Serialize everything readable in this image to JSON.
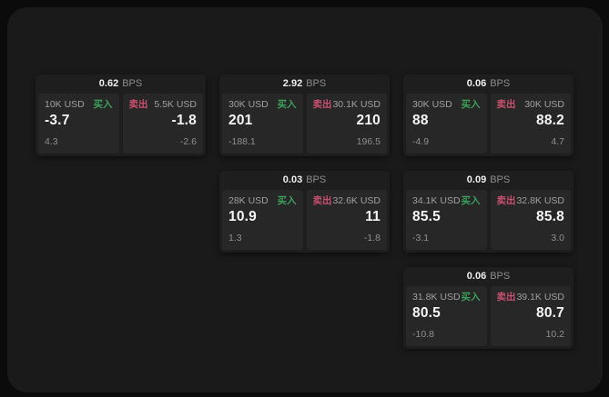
{
  "labels": {
    "bps_unit": "BPS",
    "buy": "买入",
    "sell": "卖出"
  },
  "colors": {
    "outer_background": "#0b0b0b",
    "panel_background": "#1a1a1a",
    "card_background": "#1e1e1e",
    "tile_background": "#272727",
    "buy_accent": "#3ca05a",
    "sell_accent": "#c8506e",
    "value_text": "#f5f5f5",
    "label_text": "#a0a0a0"
  },
  "cards": [
    {
      "col": 0,
      "row": 0,
      "bps": "0.62",
      "buy": {
        "notional": "10K USD",
        "value": "-3.7",
        "delta": "4.3"
      },
      "sell": {
        "notional": "5.5K USD",
        "value": "-1.8",
        "delta": "-2.6"
      }
    },
    {
      "col": 1,
      "row": 0,
      "bps": "2.92",
      "buy": {
        "notional": "30K USD",
        "value": "201",
        "delta": "-188.1"
      },
      "sell": {
        "notional": "30.1K USD",
        "value": "210",
        "delta": "196.5"
      }
    },
    {
      "col": 2,
      "row": 0,
      "bps": "0.06",
      "buy": {
        "notional": "30K USD",
        "value": "88",
        "delta": "-4.9"
      },
      "sell": {
        "notional": "30K USD",
        "value": "88.2",
        "delta": "4.7"
      }
    },
    {
      "col": 1,
      "row": 1,
      "bps": "0.03",
      "buy": {
        "notional": "28K USD",
        "value": "10.9",
        "delta": "1.3"
      },
      "sell": {
        "notional": "32.6K USD",
        "value": "11",
        "delta": "-1.8"
      }
    },
    {
      "col": 2,
      "row": 1,
      "bps": "0.09",
      "buy": {
        "notional": "34.1K USD",
        "value": "85.5",
        "delta": "-3.1"
      },
      "sell": {
        "notional": "32.8K USD",
        "value": "85.8",
        "delta": "3.0"
      }
    },
    {
      "col": 2,
      "row": 2,
      "bps": "0.06",
      "buy": {
        "notional": "31.8K USD",
        "value": "80.5",
        "delta": "-10.8"
      },
      "sell": {
        "notional": "39.1K USD",
        "value": "80.7",
        "delta": "10.2"
      }
    }
  ]
}
